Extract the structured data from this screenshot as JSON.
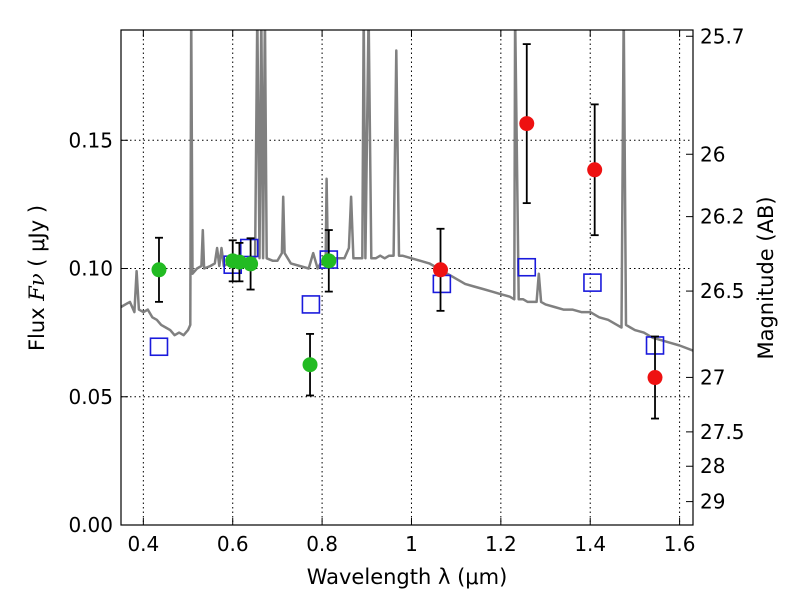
{
  "chart_data": {
    "type": "scatter",
    "xlabel": "Wavelength  λ (μm)",
    "ylabel_left_text": "Flux ",
    "ylabel_left_symbol": "Fν",
    "ylabel_left_unit": " ( μJy )",
    "ylabel_right": "Magnitude (AB)",
    "xlim": [
      0.35,
      1.63
    ],
    "ylim": [
      0.0,
      0.193
    ],
    "x_ticks": [
      0.4,
      0.6,
      0.8,
      1.0,
      1.2,
      1.4,
      1.6
    ],
    "x_tick_labels": [
      "0.4",
      "0.6",
      "0.8",
      "1",
      "1.2",
      "1.4",
      "1.6"
    ],
    "y_ticks": [
      0.0,
      0.05,
      0.1,
      0.15
    ],
    "y_tick_labels": [
      "0.00",
      "0.05",
      "0.10",
      "0.15"
    ],
    "right_ticks": [
      {
        "mag": 25.7,
        "label": "25.7"
      },
      {
        "mag": 26,
        "label": "26"
      },
      {
        "mag": 26.2,
        "label": "26.2"
      },
      {
        "mag": 26.5,
        "label": "26.5"
      },
      {
        "mag": 27,
        "label": "27"
      },
      {
        "mag": 27.5,
        "label": "27.5"
      },
      {
        "mag": 28,
        "label": "28"
      },
      {
        "mag": 29,
        "label": "29"
      }
    ],
    "grid": true,
    "colors": {
      "sed": "#808080",
      "green": "#22bb22",
      "red": "#ee1111",
      "model": "#1a1adc",
      "error": "#000000"
    },
    "green_points": [
      {
        "x": 0.435,
        "y": 0.0995,
        "err": 0.0125
      },
      {
        "x": 0.6,
        "y": 0.103,
        "err": 0.008
      },
      {
        "x": 0.615,
        "y": 0.1025,
        "err": 0.0075
      },
      {
        "x": 0.64,
        "y": 0.1018,
        "err": 0.01
      },
      {
        "x": 0.773,
        "y": 0.0625,
        "err": 0.012
      },
      {
        "x": 0.815,
        "y": 0.103,
        "err": 0.012
      }
    ],
    "red_points": [
      {
        "x": 1.065,
        "y": 0.0995,
        "err": 0.016
      },
      {
        "x": 1.258,
        "y": 0.1565,
        "err": 0.031
      },
      {
        "x": 1.41,
        "y": 0.1385,
        "err": 0.0255
      },
      {
        "x": 1.545,
        "y": 0.0575,
        "err": 0.016
      }
    ],
    "model_points": [
      {
        "x": 0.435,
        "y": 0.0695
      },
      {
        "x": 0.6,
        "y": 0.1015
      },
      {
        "x": 0.637,
        "y": 0.108
      },
      {
        "x": 0.775,
        "y": 0.086
      },
      {
        "x": 0.815,
        "y": 0.1035
      },
      {
        "x": 1.068,
        "y": 0.094
      },
      {
        "x": 1.258,
        "y": 0.1005
      },
      {
        "x": 1.405,
        "y": 0.0945
      },
      {
        "x": 1.545,
        "y": 0.07
      }
    ],
    "sed_curve": [
      [
        0.35,
        0.085
      ],
      [
        0.37,
        0.087
      ],
      [
        0.38,
        0.083
      ],
      [
        0.385,
        0.099
      ],
      [
        0.39,
        0.084
      ],
      [
        0.4,
        0.083
      ],
      [
        0.41,
        0.084
      ],
      [
        0.42,
        0.081
      ],
      [
        0.43,
        0.08
      ],
      [
        0.44,
        0.078
      ],
      [
        0.45,
        0.077
      ],
      [
        0.46,
        0.076
      ],
      [
        0.47,
        0.074
      ],
      [
        0.48,
        0.075
      ],
      [
        0.49,
        0.074
      ],
      [
        0.5,
        0.076
      ],
      [
        0.505,
        0.078
      ],
      [
        0.507,
        0.2
      ],
      [
        0.51,
        0.098
      ],
      [
        0.52,
        0.1
      ],
      [
        0.53,
        0.101
      ],
      [
        0.533,
        0.115
      ],
      [
        0.536,
        0.1
      ],
      [
        0.55,
        0.101
      ],
      [
        0.56,
        0.102
      ],
      [
        0.565,
        0.108
      ],
      [
        0.57,
        0.101
      ],
      [
        0.575,
        0.108
      ],
      [
        0.58,
        0.101
      ],
      [
        0.59,
        0.102
      ],
      [
        0.6,
        0.101
      ],
      [
        0.61,
        0.102
      ],
      [
        0.62,
        0.101
      ],
      [
        0.63,
        0.102
      ],
      [
        0.64,
        0.103
      ],
      [
        0.65,
        0.104
      ],
      [
        0.655,
        0.2
      ],
      [
        0.66,
        0.104
      ],
      [
        0.664,
        0.2
      ],
      [
        0.668,
        0.104
      ],
      [
        0.672,
        0.2
      ],
      [
        0.676,
        0.104
      ],
      [
        0.69,
        0.103
      ],
      [
        0.7,
        0.103
      ],
      [
        0.71,
        0.106
      ],
      [
        0.713,
        0.128
      ],
      [
        0.716,
        0.106
      ],
      [
        0.73,
        0.102
      ],
      [
        0.75,
        0.101
      ],
      [
        0.77,
        0.1
      ],
      [
        0.78,
        0.106
      ],
      [
        0.79,
        0.1
      ],
      [
        0.8,
        0.103
      ],
      [
        0.808,
        0.104
      ],
      [
        0.81,
        0.135
      ],
      [
        0.813,
        0.104
      ],
      [
        0.83,
        0.104
      ],
      [
        0.85,
        0.104
      ],
      [
        0.86,
        0.108
      ],
      [
        0.865,
        0.128
      ],
      [
        0.87,
        0.104
      ],
      [
        0.88,
        0.104
      ],
      [
        0.89,
        0.104
      ],
      [
        0.893,
        0.2
      ],
      [
        0.897,
        0.104
      ],
      [
        0.904,
        0.2
      ],
      [
        0.91,
        0.104
      ],
      [
        0.92,
        0.104
      ],
      [
        0.93,
        0.105
      ],
      [
        0.94,
        0.104
      ],
      [
        0.95,
        0.105
      ],
      [
        0.96,
        0.105
      ],
      [
        0.966,
        0.185
      ],
      [
        0.972,
        0.105
      ],
      [
        0.98,
        0.105
      ],
      [
        1.0,
        0.104
      ],
      [
        1.02,
        0.103
      ],
      [
        1.04,
        0.102
      ],
      [
        1.06,
        0.1
      ],
      [
        1.08,
        0.098
      ],
      [
        1.09,
        0.097
      ],
      [
        1.1,
        0.096
      ],
      [
        1.11,
        0.095
      ],
      [
        1.12,
        0.094
      ],
      [
        1.14,
        0.093
      ],
      [
        1.16,
        0.092
      ],
      [
        1.18,
        0.091
      ],
      [
        1.2,
        0.09
      ],
      [
        1.22,
        0.089
      ],
      [
        1.23,
        0.088
      ],
      [
        1.232,
        0.2
      ],
      [
        1.24,
        0.088
      ],
      [
        1.25,
        0.088
      ],
      [
        1.26,
        0.087
      ],
      [
        1.28,
        0.087
      ],
      [
        1.285,
        0.098
      ],
      [
        1.29,
        0.087
      ],
      [
        1.3,
        0.086
      ],
      [
        1.32,
        0.085
      ],
      [
        1.34,
        0.084
      ],
      [
        1.36,
        0.084
      ],
      [
        1.38,
        0.083
      ],
      [
        1.4,
        0.083
      ],
      [
        1.41,
        0.082
      ],
      [
        1.42,
        0.081
      ],
      [
        1.44,
        0.08
      ],
      [
        1.46,
        0.078
      ],
      [
        1.47,
        0.077
      ],
      [
        1.475,
        0.2
      ],
      [
        1.48,
        0.078
      ],
      [
        1.49,
        0.077
      ],
      [
        1.5,
        0.076
      ],
      [
        1.52,
        0.075
      ],
      [
        1.54,
        0.073
      ],
      [
        1.56,
        0.072
      ],
      [
        1.58,
        0.071
      ],
      [
        1.6,
        0.07
      ],
      [
        1.63,
        0.068
      ]
    ]
  }
}
